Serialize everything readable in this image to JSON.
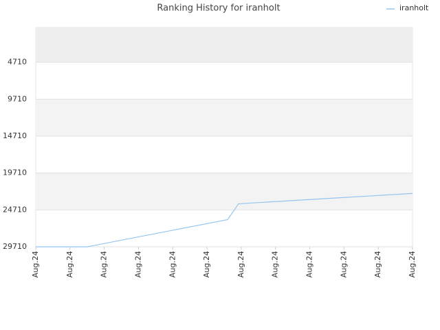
{
  "chart_data": {
    "type": "line",
    "title": "Ranking History for iranholt",
    "x": [
      0,
      1.5,
      5.6,
      5.92,
      11
    ],
    "series": [
      {
        "name": "iranholt",
        "color": "#95c4f0",
        "values": [
          29710,
          29710,
          26030,
          23880,
          22480
        ]
      }
    ],
    "xlim": [
      0,
      11
    ],
    "xticks": [
      {
        "value": 0,
        "label": "Aug.24"
      },
      {
        "value": 1,
        "label": "Aug.24"
      },
      {
        "value": 2,
        "label": "Aug.24"
      },
      {
        "value": 3,
        "label": "Aug.24"
      },
      {
        "value": 4,
        "label": "Aug.24"
      },
      {
        "value": 5,
        "label": "Aug.24"
      },
      {
        "value": 6,
        "label": "Aug.24"
      },
      {
        "value": 7,
        "label": "Aug.24"
      },
      {
        "value": 8,
        "label": "Aug.24"
      },
      {
        "value": 9,
        "label": "Aug.24"
      },
      {
        "value": 10,
        "label": "Aug.24"
      },
      {
        "value": 11,
        "label": "Aug.24"
      }
    ],
    "ylim": [
      0,
      29710
    ],
    "inverted": true,
    "yticks": [
      4710,
      9710,
      14710,
      19710,
      24710,
      29710
    ],
    "grid": true,
    "legend": "top-right"
  }
}
